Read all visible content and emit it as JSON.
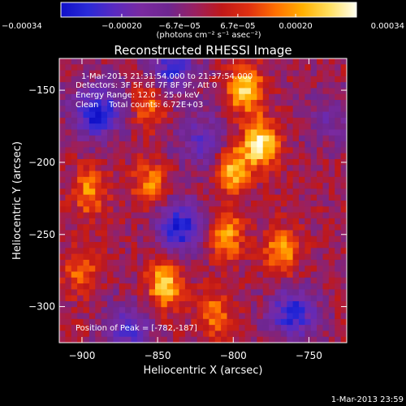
{
  "chart_data": {
    "type": "heatmap",
    "title": "Reconstructed RHESSI Image",
    "xlabel": "Heliocentric X (arcsec)",
    "ylabel": "Heliocentric Y (arcsec)",
    "xlim": [
      -915,
      -725
    ],
    "ylim": [
      -325,
      -128
    ],
    "xticks": [
      -900,
      -850,
      -800,
      -750
    ],
    "xtick_labels": [
      "−900",
      "−850",
      "−800",
      "−750"
    ],
    "yticks": [
      -150,
      -200,
      -250,
      -300
    ],
    "ytick_labels": [
      "−150",
      "−200",
      "−250",
      "−300"
    ],
    "annotations": [
      "1-Mar-2013 21:31:54.000 to 21:37:54.000",
      "Detectors: 3F 5F 6F 7F 8F 9F, Att 0",
      "Energy Range: 12.0 - 25.0 keV",
      "Clean    Total counts: 6.72E+03",
      "Position of Peak = [-782,-187]"
    ],
    "peak_position": [
      -782,
      -187
    ],
    "colorbar": {
      "min": -0.00034,
      "max": 0.00034,
      "ticks": [
        -0.00034,
        -0.0002,
        -6.7e-05,
        6.7e-05,
        0.0002,
        0.00034
      ],
      "tick_labels": [
        "−0.00034",
        "−0.00020",
        "−6.7e−05",
        "6.7e−05",
        "0.00020",
        "0.00034"
      ],
      "unit_label": "(photons cm⁻² s⁻¹ asec⁻²)",
      "colors": [
        "#1010c8",
        "#2a2ad8",
        "#5a2ac0",
        "#7a2aa0",
        "#6e2690",
        "#9a2060",
        "#c01818",
        "#e03010",
        "#ff7000",
        "#ffb000",
        "#ffe060",
        "#fffff0"
      ]
    },
    "features": [
      {
        "label": "brightest-ridge",
        "x": -782,
        "y": -187,
        "level": 1.0
      },
      {
        "label": "northern-arc",
        "x": -792,
        "y": -150,
        "level": 0.88
      },
      {
        "label": "ridge-middle",
        "x": -800,
        "y": -205,
        "level": 0.78
      },
      {
        "label": "southern-ridge",
        "x": -805,
        "y": -250,
        "level": 0.72
      },
      {
        "label": "eastern-loop",
        "x": -768,
        "y": -262,
        "level": 0.7
      },
      {
        "label": "southwest-bright",
        "x": -845,
        "y": -285,
        "level": 0.85
      },
      {
        "label": "central-patch",
        "x": -855,
        "y": -215,
        "level": 0.55
      },
      {
        "label": "west-streak",
        "x": -895,
        "y": -220,
        "level": 0.6
      },
      {
        "label": "west-lower",
        "x": -900,
        "y": -275,
        "level": 0.5
      },
      {
        "label": "north-center",
        "x": -855,
        "y": -160,
        "level": 0.5
      },
      {
        "label": "south-center",
        "x": -812,
        "y": -305,
        "level": 0.5
      },
      {
        "label": "northwest-dark",
        "x": -890,
        "y": -165,
        "level": -0.9
      },
      {
        "label": "north-dark",
        "x": -840,
        "y": -135,
        "level": -0.7
      },
      {
        "label": "center-dark",
        "x": -835,
        "y": -245,
        "level": -0.85
      },
      {
        "label": "upper-dark",
        "x": -820,
        "y": -185,
        "level": -0.55
      },
      {
        "label": "bottom-dark",
        "x": -870,
        "y": -315,
        "level": -0.6
      },
      {
        "label": "bottom-right-dark",
        "x": -760,
        "y": -305,
        "level": -0.8
      },
      {
        "label": "east-dark",
        "x": -735,
        "y": -170,
        "level": -0.35
      }
    ]
  },
  "footer": {
    "timestamp": "1-Mar-2013 23:59"
  }
}
